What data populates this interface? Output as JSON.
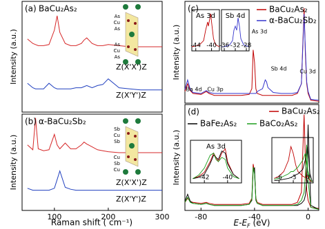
{
  "chart_data": [
    {
      "type": "line",
      "panel_label": "(a)",
      "title": "BaCu₂As₂",
      "y_label": "Intensity (a.u.)",
      "structure_labels": [
        "As",
        "Cu",
        "As",
        "As",
        "Cu",
        "As"
      ],
      "xlim": [
        40,
        300
      ],
      "ylim": [
        0,
        10
      ],
      "x": [
        50,
        60,
        65,
        70,
        80,
        90,
        100,
        105,
        110,
        120,
        130,
        140,
        150,
        155,
        160,
        170,
        180,
        190,
        200,
        220,
        240,
        260,
        280,
        300
      ],
      "series": [
        {
          "name": "Z(X'X')Z",
          "color": "#d62728",
          "values": [
            6.6,
            6.2,
            6.1,
            6.0,
            6.0,
            6.1,
            7.4,
            8.7,
            7.2,
            6.2,
            6.0,
            6.0,
            6.2,
            6.5,
            6.7,
            6.2,
            6.0,
            6.0,
            6.1,
            6.0,
            5.9,
            5.9,
            5.9,
            5.9
          ]
        },
        {
          "name": "Z(X'Y')Z",
          "color": "#1f3fbf",
          "values": [
            2.6,
            2.2,
            2.1,
            2.1,
            2.1,
            2.6,
            2.2,
            2.1,
            2.1,
            2.1,
            2.1,
            2.2,
            2.2,
            2.3,
            2.4,
            2.2,
            2.4,
            2.5,
            3.0,
            2.2,
            2.1,
            2.0,
            2.0,
            2.0
          ]
        }
      ]
    },
    {
      "type": "line",
      "panel_label": "(b)",
      "title": "α-BaCu₂Sb₂",
      "y_label": "Intensity (a.u.)",
      "x_label": "Raman shift ( cm⁻¹)",
      "structure_labels": [
        "Sb",
        "Cu",
        "Sb",
        "Cu",
        "Sb",
        "Cu"
      ],
      "xlim": [
        40,
        300
      ],
      "ylim": [
        0,
        10
      ],
      "xticks": [
        100,
        200,
        300
      ],
      "x": [
        50,
        60,
        65,
        70,
        80,
        90,
        100,
        105,
        110,
        120,
        130,
        140,
        150,
        155,
        160,
        170,
        180,
        190,
        200,
        220,
        240,
        260,
        280,
        300
      ],
      "series": [
        {
          "name": "Z(X'X')Z",
          "color": "#d62728",
          "values": [
            6.8,
            6.3,
            9.6,
            6.4,
            6.2,
            6.3,
            7.9,
            6.8,
            6.4,
            7.0,
            6.4,
            6.4,
            6.8,
            7.1,
            6.9,
            6.6,
            6.3,
            6.2,
            6.1,
            6.0,
            6.0,
            6.0,
            6.0,
            6.0
          ]
        },
        {
          "name": "Z(X'Y')Z",
          "color": "#1f3fbf",
          "values": [
            2.3,
            2.1,
            2.1,
            2.1,
            2.1,
            2.1,
            2.3,
            3.2,
            4.1,
            2.4,
            2.2,
            2.1,
            2.1,
            2.1,
            2.1,
            2.1,
            2.1,
            2.1,
            2.1,
            2.1,
            2.1,
            2.1,
            2.1,
            2.1
          ]
        }
      ]
    },
    {
      "type": "line",
      "panel_label": "(c)",
      "y_label": "Intensity (a.u.)",
      "annotations": [
        "Ba 4d",
        "Cu 3p",
        "As 3d",
        "Sb 4d",
        "Cu 3d"
      ],
      "xlim": [
        -92,
        8
      ],
      "ylim": [
        0,
        10.5
      ],
      "x": [
        -92,
        -90,
        -88,
        -86,
        -80,
        -76,
        -74,
        -70,
        -60,
        -50,
        -44,
        -42,
        -41,
        -40,
        -39,
        -38,
        -34,
        -32,
        -31,
        -30,
        -26,
        -20,
        -12,
        -8,
        -5,
        -3,
        -2,
        -1,
        0,
        2,
        8
      ],
      "series": [
        {
          "name": "BaCu₂As₂",
          "color": "#c00000",
          "values": [
            1.2,
            2.0,
            1.3,
            1.0,
            0.9,
            1.2,
            1.0,
            0.8,
            0.8,
            0.8,
            0.9,
            1.5,
            5.5,
            4.2,
            1.5,
            1.0,
            0.8,
            0.8,
            0.8,
            0.8,
            0.8,
            0.8,
            0.8,
            1.0,
            2.0,
            9.8,
            5.0,
            2.0,
            1.0,
            0.3,
            0.2
          ]
        },
        {
          "name": "α-BaCu₂Sb₂",
          "color": "#3333cc",
          "values": [
            1.4,
            2.4,
            1.4,
            1.1,
            1.0,
            1.3,
            1.1,
            1.0,
            1.0,
            1.0,
            1.0,
            1.0,
            1.0,
            1.0,
            1.0,
            1.2,
            1.5,
            2.4,
            2.2,
            1.6,
            1.1,
            1.0,
            1.0,
            1.1,
            2.0,
            9.2,
            5.5,
            2.2,
            1.2,
            0.4,
            0.3
          ]
        }
      ],
      "insets": [
        {
          "type": "line",
          "title": "As 3d",
          "xlim": [
            -45,
            -38
          ],
          "ylim": [
            0,
            10
          ],
          "xticks": [
            -44,
            -40
          ],
          "x": [
            -45,
            -44,
            -43,
            -42,
            -41.5,
            -41,
            -40.8,
            -40.5,
            -40.2,
            -40,
            -39.5,
            -39,
            -38
          ],
          "series": [
            {
              "color": "#c00000",
              "values": [
                1,
                1.2,
                1.5,
                2.5,
                5,
                7,
                6,
                7.5,
                9,
                7,
                3,
                1.5,
                1
              ]
            }
          ]
        },
        {
          "type": "line",
          "title": "Sb 4d",
          "xlim": [
            -37,
            -27
          ],
          "ylim": [
            0,
            10
          ],
          "xticks": [
            -36,
            -32,
            -28
          ],
          "x": [
            -37,
            -36,
            -35,
            -34,
            -33,
            -32.5,
            -32,
            -31.5,
            -31,
            -30.5,
            -30,
            -29,
            -28,
            -27
          ],
          "series": [
            {
              "color": "#3333cc",
              "values": [
                1,
                1,
                1.2,
                1.5,
                2.5,
                5,
                6,
                5,
                8,
                6,
                3,
                1.5,
                1.2,
                1
              ]
            }
          ]
        }
      ]
    },
    {
      "type": "line",
      "panel_label": "(d)",
      "y_label": "Intensity (a.u.)",
      "x_label": [
        "E-E",
        "F",
        " (eV)"
      ],
      "xlim": [
        -92,
        8
      ],
      "ylim": [
        0,
        10.5
      ],
      "xticks": [
        -80,
        -40,
        0
      ],
      "x": [
        -92,
        -90,
        -88,
        -86,
        -80,
        -76,
        -74,
        -70,
        -60,
        -50,
        -44,
        -42,
        -41,
        -40,
        -39,
        -38,
        -34,
        -32,
        -31,
        -30,
        -26,
        -20,
        -12,
        -8,
        -5,
        -3,
        -2,
        -1,
        0,
        2,
        8
      ],
      "series": [
        {
          "name": "BaCu₂As₂",
          "color": "#c00000",
          "values": [
            0.8,
            1.2,
            0.9,
            0.8,
            0.7,
            0.8,
            0.7,
            0.6,
            0.6,
            0.6,
            0.7,
            1.2,
            4.6,
            3.8,
            1.2,
            0.8,
            0.6,
            0.6,
            0.6,
            0.6,
            0.6,
            0.6,
            0.6,
            0.8,
            1.8,
            9.5,
            5,
            2,
            1,
            0.3,
            0.2
          ]
        },
        {
          "name": "BaFe₂As₂",
          "color": "#000000",
          "values": [
            0.9,
            1.6,
            0.9,
            0.7,
            0.6,
            0.7,
            0.6,
            0.5,
            0.5,
            0.5,
            0.6,
            1.0,
            4.0,
            4.2,
            1.0,
            0.7,
            0.5,
            0.5,
            0.5,
            0.5,
            0.5,
            0.5,
            0.5,
            0.5,
            0.7,
            1.0,
            1.5,
            3.0,
            8.5,
            0.5,
            0.1
          ]
        },
        {
          "name": "BaCo₂As₂",
          "color": "#1a9e1a",
          "values": [
            0.8,
            1.3,
            0.8,
            0.7,
            0.6,
            0.7,
            0.6,
            0.5,
            0.5,
            0.5,
            0.6,
            1.1,
            4.3,
            3.6,
            1.1,
            0.7,
            0.5,
            0.5,
            0.5,
            0.5,
            0.5,
            0.5,
            0.5,
            0.6,
            1.0,
            1.8,
            3.5,
            6.5,
            3.0,
            0.3,
            0.1
          ]
        }
      ],
      "insets": [
        {
          "type": "line",
          "title": "As 3d",
          "xlim": [
            -43.2,
            -38.8
          ],
          "ylim": [
            0,
            10
          ],
          "xticks": [
            -42,
            -40
          ],
          "x": [
            -43,
            -42.5,
            -42,
            -41.5,
            -41.2,
            -41,
            -40.8,
            -40.5,
            -40.2,
            -40,
            -39.5,
            -39
          ],
          "series": [
            {
              "color": "#c00000",
              "values": [
                1,
                1.5,
                2.5,
                5,
                7,
                6,
                5,
                7,
                8,
                5,
                2,
                1
              ]
            },
            {
              "color": "#000000",
              "values": [
                1,
                1.3,
                2,
                4.5,
                6.5,
                6,
                5.5,
                7.5,
                7,
                4.5,
                2,
                1
              ]
            },
            {
              "color": "#1a9e1a",
              "values": [
                1,
                1.8,
                3.5,
                6.5,
                7,
                5.5,
                5,
                6,
                5.5,
                3.5,
                1.5,
                1
              ]
            }
          ]
        },
        {
          "type": "line",
          "xlim": [
            -7.5,
            1.2
          ],
          "ylim": [
            0,
            10
          ],
          "xticks": [
            -6,
            -3,
            0
          ],
          "x": [
            -7,
            -6,
            -5,
            -4,
            -3.5,
            -3,
            -2.5,
            -2,
            -1,
            -0.5,
            0,
            0.5,
            1
          ],
          "series": [
            {
              "color": "#c00000",
              "values": [
                1,
                1.5,
                2.5,
                5,
                8,
                6.5,
                4,
                2.5,
                1.5,
                1.2,
                1.5,
                0.5,
                0.2
              ]
            },
            {
              "color": "#000000",
              "values": [
                0.5,
                0.6,
                0.8,
                1,
                1.2,
                1.5,
                1.8,
                2,
                3,
                5,
                8,
                2,
                0.3
              ]
            },
            {
              "color": "#1a9e1a",
              "values": [
                0.8,
                1,
                1.5,
                2,
                2.5,
                2.5,
                3,
                3.5,
                5,
                6.5,
                3,
                0.8,
                0.2
              ]
            }
          ]
        }
      ]
    }
  ]
}
